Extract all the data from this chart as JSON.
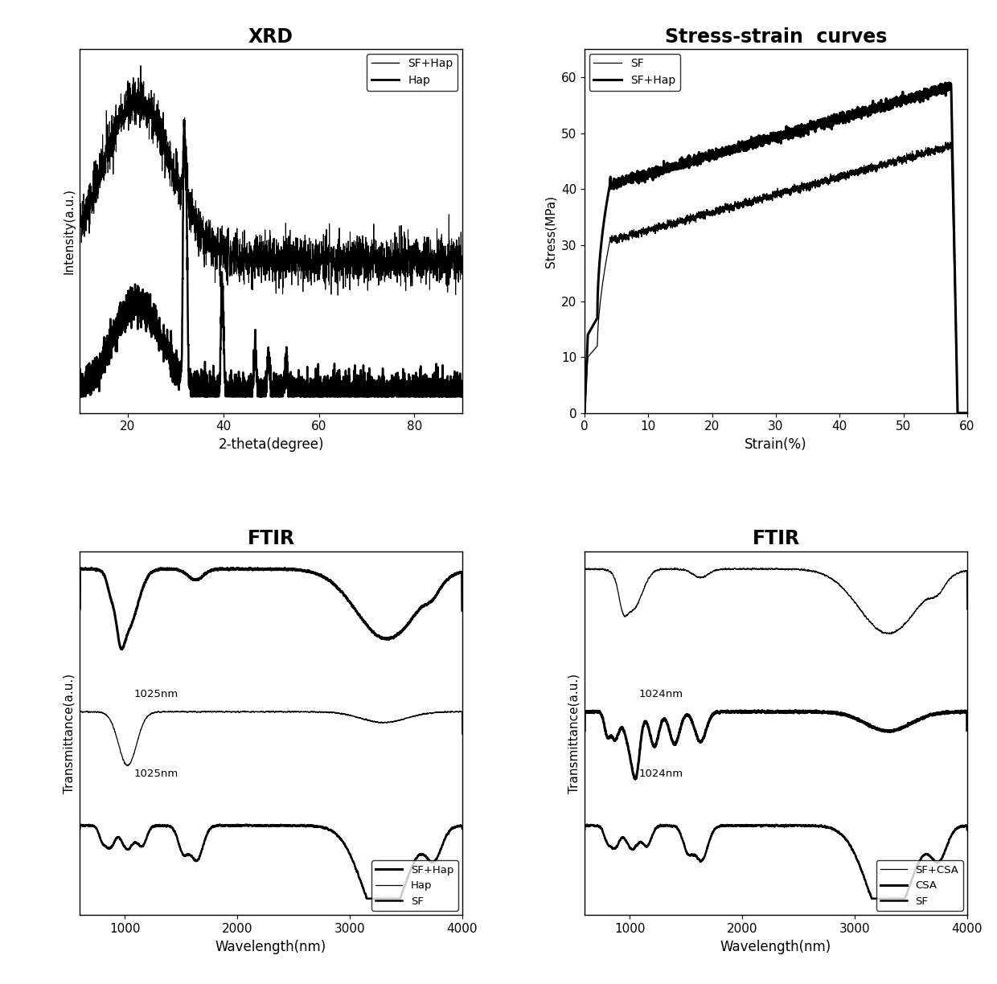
{
  "fig_width": 12.4,
  "fig_height": 12.24,
  "titles": [
    "XRD",
    "Stress-strain  curves",
    "FTIR",
    "FTIR"
  ],
  "title_fontsize": 17,
  "title_fontweight": "bold",
  "xrd": {
    "xlabel": "2-theta(degree)",
    "ylabel": "Intensity(a.u.)",
    "xlim": [
      10,
      90
    ],
    "xticks": [
      20,
      40,
      60,
      80
    ],
    "legend_labels": [
      "SF+Hap",
      "Hap"
    ]
  },
  "stress_strain": {
    "xlabel": "Strain(%)",
    "ylabel": "Stress(MPa)",
    "xlim": [
      0,
      60
    ],
    "ylim": [
      0,
      65
    ],
    "xticks": [
      0,
      10,
      20,
      30,
      40,
      50,
      60
    ],
    "yticks": [
      0,
      10,
      20,
      30,
      40,
      50,
      60
    ],
    "legend_labels": [
      "SF",
      "SF+Hap"
    ]
  },
  "ftir_left": {
    "xlabel": "Wavelength(nm)",
    "ylabel": "Transmittance(a.u.)",
    "xlim": [
      600,
      4000
    ],
    "xticks": [
      1000,
      2000,
      3000,
      4000
    ],
    "legend_labels": [
      "SF+Hap",
      "Hap",
      "SF"
    ],
    "annot1": "1025nm",
    "annot2": "1025nm"
  },
  "ftir_right": {
    "xlabel": "Wavelength(nm)",
    "ylabel": "Transmittance(a.u.)",
    "xlim": [
      600,
      4000
    ],
    "xticks": [
      1000,
      2000,
      3000,
      4000
    ],
    "legend_labels": [
      "SF+CSA",
      "CSA",
      "SF"
    ],
    "annot1": "1024nm",
    "annot2": "1024nm"
  }
}
